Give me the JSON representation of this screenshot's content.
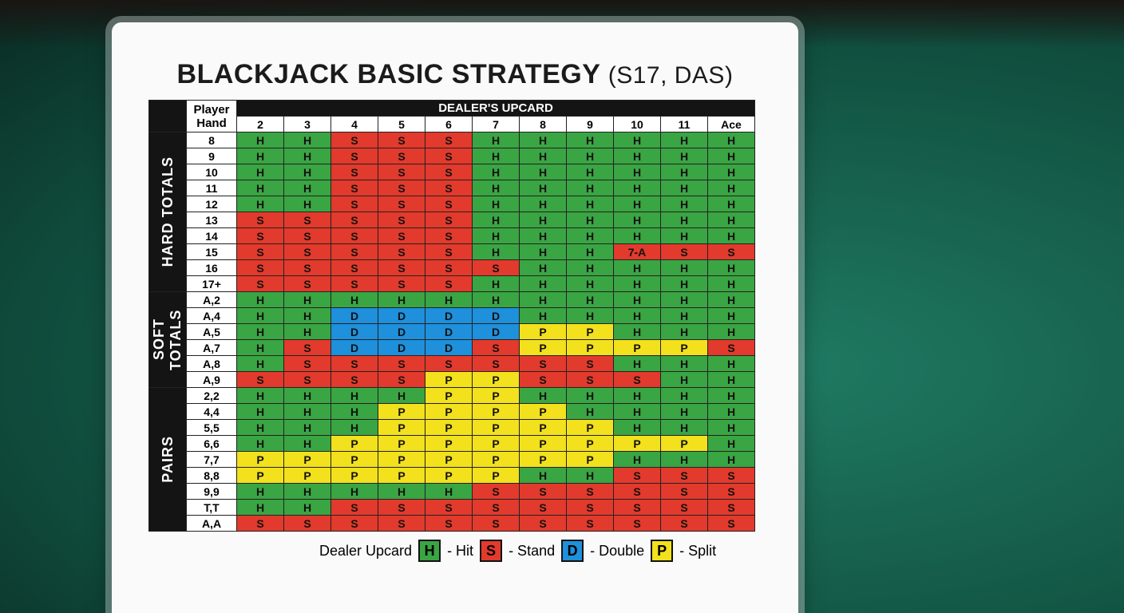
{
  "title": "BLACKJACK BASIC STRATEGY",
  "subtitle": "(S17, DAS)",
  "table": {
    "hand_header": "Player Hand",
    "header": "DEALER'S UPCARD",
    "columns": [
      "2",
      "3",
      "4",
      "5",
      "6",
      "7",
      "8",
      "9",
      "10",
      "11",
      "Ace"
    ],
    "sections": [
      {
        "label": "HARD TOTALS",
        "rows": [
          {
            "hand": "8",
            "cells": [
              "H",
              "H",
              "S",
              "S",
              "S",
              "H",
              "H",
              "H",
              "H",
              "H",
              "H"
            ]
          },
          {
            "hand": "9",
            "cells": [
              "H",
              "H",
              "S",
              "S",
              "S",
              "H",
              "H",
              "H",
              "H",
              "H",
              "H"
            ]
          },
          {
            "hand": "10",
            "cells": [
              "H",
              "H",
              "S",
              "S",
              "S",
              "H",
              "H",
              "H",
              "H",
              "H",
              "H"
            ]
          },
          {
            "hand": "11",
            "cells": [
              "H",
              "H",
              "S",
              "S",
              "S",
              "H",
              "H",
              "H",
              "H",
              "H",
              "H"
            ]
          },
          {
            "hand": "12",
            "cells": [
              "H",
              "H",
              "S",
              "S",
              "S",
              "H",
              "H",
              "H",
              "H",
              "H",
              "H"
            ]
          },
          {
            "hand": "13",
            "cells": [
              "S",
              "S",
              "S",
              "S",
              "S",
              "H",
              "H",
              "H",
              "H",
              "H",
              "H"
            ]
          },
          {
            "hand": "14",
            "cells": [
              "S",
              "S",
              "S",
              "S",
              "S",
              "H",
              "H",
              "H",
              "H",
              "H",
              "H"
            ]
          },
          {
            "hand": "15",
            "cells": [
              "S",
              "S",
              "S",
              "S",
              "S",
              "H",
              "H",
              "H",
              "7-A",
              "S",
              "S"
            ]
          },
          {
            "hand": "16",
            "cells": [
              "S",
              "S",
              "S",
              "S",
              "S",
              "S",
              "H",
              "H",
              "H",
              "H",
              "H"
            ]
          },
          {
            "hand": "17+",
            "cells": [
              "S",
              "S",
              "S",
              "S",
              "S",
              "H",
              "H",
              "H",
              "H",
              "H",
              "H"
            ]
          }
        ]
      },
      {
        "label": "SOFT TOTALS",
        "rows": [
          {
            "hand": "A,2",
            "cells": [
              "H",
              "H",
              "H",
              "H",
              "H",
              "H",
              "H",
              "H",
              "H",
              "H",
              "H"
            ]
          },
          {
            "hand": "A,4",
            "cells": [
              "H",
              "H",
              "D",
              "D",
              "D",
              "D",
              "H",
              "H",
              "H",
              "H",
              "H"
            ]
          },
          {
            "hand": "A,5",
            "cells": [
              "H",
              "H",
              "D",
              "D",
              "D",
              "D",
              "P",
              "P",
              "H",
              "H",
              "H"
            ]
          },
          {
            "hand": "A,7",
            "cells": [
              "H",
              "S",
              "D",
              "D",
              "D",
              "S",
              "P",
              "P",
              "P",
              "P",
              "S"
            ]
          },
          {
            "hand": "A,8",
            "cells": [
              "H",
              "S",
              "S",
              "S",
              "S",
              "S",
              "S",
              "S",
              "H",
              "H",
              "H"
            ]
          },
          {
            "hand": "A,9",
            "cells": [
              "S",
              "S",
              "S",
              "S",
              "P",
              "P",
              "S",
              "S",
              "S",
              "H",
              "H"
            ]
          }
        ]
      },
      {
        "label": "PAIRS",
        "rows": [
          {
            "hand": "2,2",
            "cells": [
              "H",
              "H",
              "H",
              "H",
              "P",
              "P",
              "H",
              "H",
              "H",
              "H",
              "H"
            ]
          },
          {
            "hand": "4,4",
            "cells": [
              "H",
              "H",
              "H",
              "P",
              "P",
              "P",
              "P",
              "H",
              "H",
              "H",
              "H"
            ]
          },
          {
            "hand": "5,5",
            "cells": [
              "H",
              "H",
              "H",
              "P",
              "P",
              "P",
              "P",
              "P",
              "H",
              "H",
              "H"
            ]
          },
          {
            "hand": "6,6",
            "cells": [
              "H",
              "H",
              "P",
              "P",
              "P",
              "P",
              "P",
              "P",
              "P",
              "P",
              "H"
            ]
          },
          {
            "hand": "7,7",
            "cells": [
              "P",
              "P",
              "P",
              "P",
              "P",
              "P",
              "P",
              "P",
              "H",
              "H",
              "H"
            ]
          },
          {
            "hand": "8,8",
            "cells": [
              "P",
              "P",
              "P",
              "P",
              "P",
              "P",
              "H",
              "H",
              "S",
              "S",
              "S"
            ]
          },
          {
            "hand": "9,9",
            "cells": [
              "H",
              "H",
              "H",
              "H",
              "H",
              "S",
              "S",
              "S",
              "S",
              "S",
              "S"
            ]
          },
          {
            "hand": "T,T",
            "cells": [
              "H",
              "H",
              "S",
              "S",
              "S",
              "S",
              "S",
              "S",
              "S",
              "S",
              "S"
            ]
          },
          {
            "hand": "A,A",
            "cells": [
              "S",
              "S",
              "S",
              "S",
              "S",
              "S",
              "S",
              "S",
              "S",
              "S",
              "S"
            ]
          }
        ]
      }
    ]
  },
  "legend": {
    "label": "Dealer Upcard",
    "items": [
      {
        "key": "H",
        "text": "- Hit",
        "color": "#3aa543"
      },
      {
        "key": "S",
        "text": "- Stand",
        "color": "#e23a2c"
      },
      {
        "key": "D",
        "text": "- Double",
        "color": "#1e90dc"
      },
      {
        "key": "P",
        "text": "- Split",
        "color": "#f2e11c"
      }
    ]
  }
}
